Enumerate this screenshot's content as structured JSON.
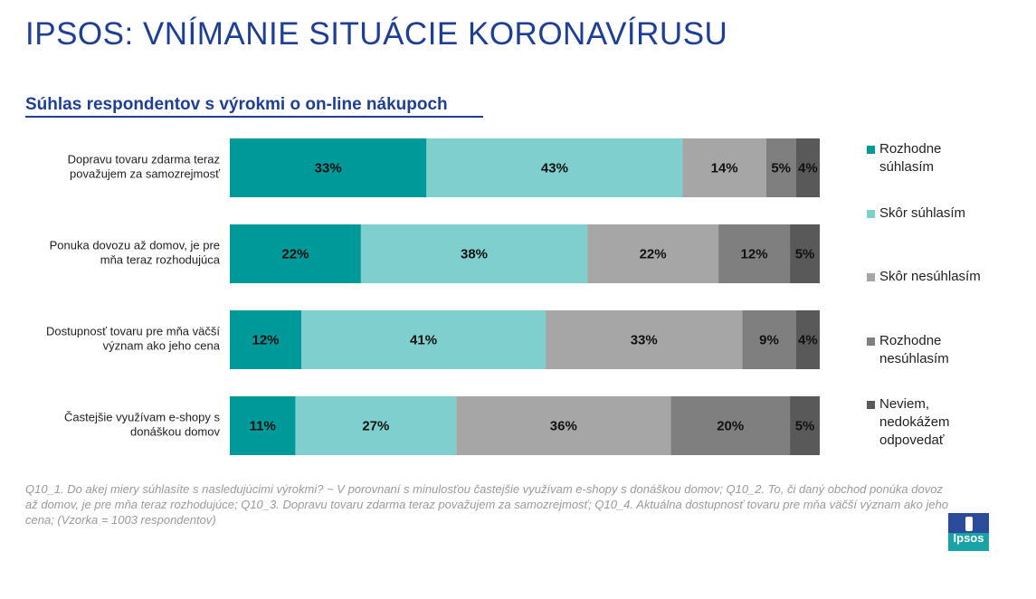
{
  "title": "IPSOS: VNÍMANIE SITUÁCIE KORONAVÍRUSU",
  "subtitle": "Súhlas respondentov s výrokmi o on-line nákupoch",
  "chart_data": {
    "type": "bar",
    "orientation": "horizontal-stacked-100",
    "categories": [
      [
        "Dopravu tovaru zdarma teraz",
        "považujem za samozrejmosť"
      ],
      [
        "Ponuka dovozu až domov, je pre",
        "mňa teraz rozhodujúca"
      ],
      [
        "Dostupnosť tovaru pre mňa väčší",
        "význam ako jeho cena"
      ],
      [
        "Častejšie využívam e-shopy s",
        "donáškou domov"
      ]
    ],
    "series": [
      {
        "name": "Rozhodne súhlasím",
        "color": "#00999a",
        "values": [
          33,
          22,
          12,
          11
        ]
      },
      {
        "name": "Skôr súhlasím",
        "color": "#7fcfcf",
        "values": [
          43,
          38,
          41,
          27
        ]
      },
      {
        "name": "Skôr nesúhlasím",
        "color": "#a6a6a6",
        "values": [
          14,
          22,
          33,
          36
        ]
      },
      {
        "name": "Rozhodne nesúhlasím",
        "color": "#7f7f7f",
        "values": [
          5,
          12,
          9,
          20
        ]
      },
      {
        "name": "Neviem, nedokážem odpovedať",
        "color": "#595959",
        "values": [
          4,
          5,
          4,
          5
        ]
      }
    ],
    "value_suffix": "%",
    "legend_position": "right"
  },
  "legend": [
    {
      "lines": [
        "Rozhodne",
        "súhlasím"
      ],
      "color": "#00999a"
    },
    {
      "lines": [
        "Skôr súhlasím"
      ],
      "color": "#7fcfcf"
    },
    {
      "lines": [
        "Skôr nesúhlasím"
      ],
      "color": "#a6a6a6"
    },
    {
      "lines": [
        "Rozhodne",
        "nesúhlasím"
      ],
      "color": "#7f7f7f"
    },
    {
      "lines": [
        "Neviem,",
        "nedokážem",
        "odpovedať"
      ],
      "color": "#595959"
    }
  ],
  "footnote": "Q10_1. Do akej miery súhlasíte s nasledujúcimi výrokmi? ~ V porovnaní s minulosťou častejšie využívam e-shopy s donáškou domov; Q10_2. To, či daný obchod ponúka dovoz až domov, je pre mňa teraz rozhodujúce; Q10_3. Dopravu tovaru zdarma teraz považujem za samozrejmosť; Q10_4. Aktuálna dostupnosť tovaru pre mňa väčší význam ako jeho cena; (Vzorka = 1003 respondentov)",
  "logo_text": "Ipsos"
}
